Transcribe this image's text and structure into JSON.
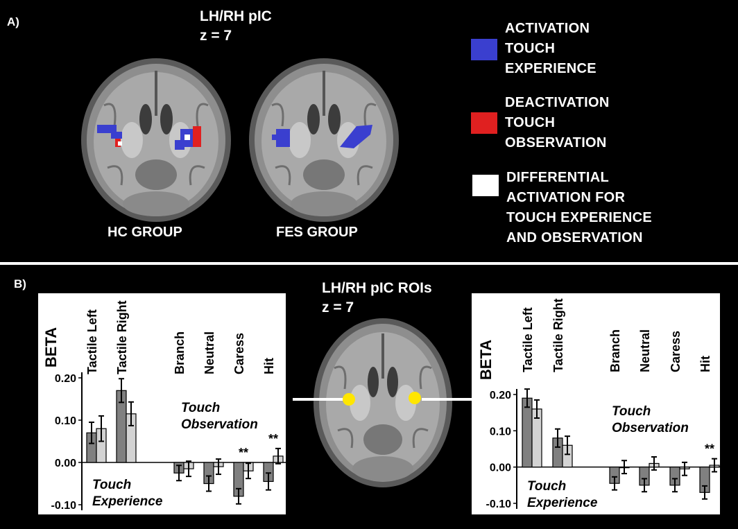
{
  "panel_a": {
    "letter": "A)",
    "title_line1": "LH/RH pIC",
    "title_line2": "z = 7",
    "groups": [
      "HC GROUP",
      "FES GROUP"
    ],
    "legend": [
      {
        "color": "#3a3fcf",
        "lines": [
          "ACTIVATION",
          "TOUCH",
          "EXPERIENCE"
        ]
      },
      {
        "color": "#e02020",
        "lines": [
          "DEACTIVATION",
          "TOUCH",
          "OBSERVATION"
        ]
      },
      {
        "color": "#ffffff",
        "lines": [
          "DIFFERENTIAL",
          "ACTIVATION FOR",
          "TOUCH EXPERIENCE",
          "AND OBSERVATION"
        ]
      }
    ]
  },
  "panel_b": {
    "letter": "B)",
    "title_line1": "LH/RH pIC ROIs",
    "title_line2": "z = 7",
    "roi_color": "#ffe600"
  },
  "chart_data": [
    {
      "type": "bar",
      "side": "left",
      "ylabel": "BETA",
      "ylim": [
        -0.1,
        0.2
      ],
      "yticks": [
        "0.20",
        "0.10",
        "0.00",
        "-0.10"
      ],
      "categories": [
        "Tactile Left",
        "Tactile Right",
        "Branch",
        "Neutral",
        "Caress",
        "Hit"
      ],
      "series": [
        {
          "color": "#808080",
          "values": [
            0.07,
            0.17,
            -0.025,
            -0.05,
            -0.08,
            -0.045
          ],
          "errors": [
            0.025,
            0.028,
            0.018,
            0.018,
            0.018,
            0.02
          ]
        },
        {
          "color": "#d3d3d3",
          "values": [
            0.08,
            0.115,
            -0.015,
            -0.01,
            -0.02,
            0.015
          ],
          "errors": [
            0.03,
            0.028,
            0.018,
            0.018,
            0.018,
            0.018
          ]
        }
      ],
      "significance": [
        {
          "category": "Caress",
          "label": "**"
        },
        {
          "category": "Hit",
          "label": "**"
        }
      ],
      "annotations": [
        {
          "lines": [
            "Touch",
            "Observation"
          ]
        },
        {
          "lines": [
            "Touch",
            "Experience"
          ]
        }
      ]
    },
    {
      "type": "bar",
      "side": "right",
      "ylabel": "BETA",
      "ylim": [
        -0.1,
        0.2
      ],
      "yticks": [
        "0.20",
        "0.10",
        "0.00",
        "-0.10"
      ],
      "categories": [
        "Tactile Left",
        "Tactile Right",
        "Branch",
        "Neutral",
        "Caress",
        "Hit"
      ],
      "series": [
        {
          "color": "#808080",
          "values": [
            0.19,
            0.08,
            -0.045,
            -0.05,
            -0.05,
            -0.07
          ],
          "errors": [
            0.025,
            0.025,
            0.018,
            0.018,
            0.018,
            0.018
          ]
        },
        {
          "color": "#d3d3d3",
          "values": [
            0.16,
            0.06,
            0.0,
            0.01,
            -0.005,
            0.005
          ],
          "errors": [
            0.025,
            0.025,
            0.018,
            0.018,
            0.018,
            0.018
          ]
        }
      ],
      "significance": [
        {
          "category": "Hit",
          "label": "**"
        }
      ],
      "annotations": [
        {
          "lines": [
            "Touch",
            "Observation"
          ]
        },
        {
          "lines": [
            "Touch",
            "Experience"
          ]
        }
      ]
    }
  ]
}
